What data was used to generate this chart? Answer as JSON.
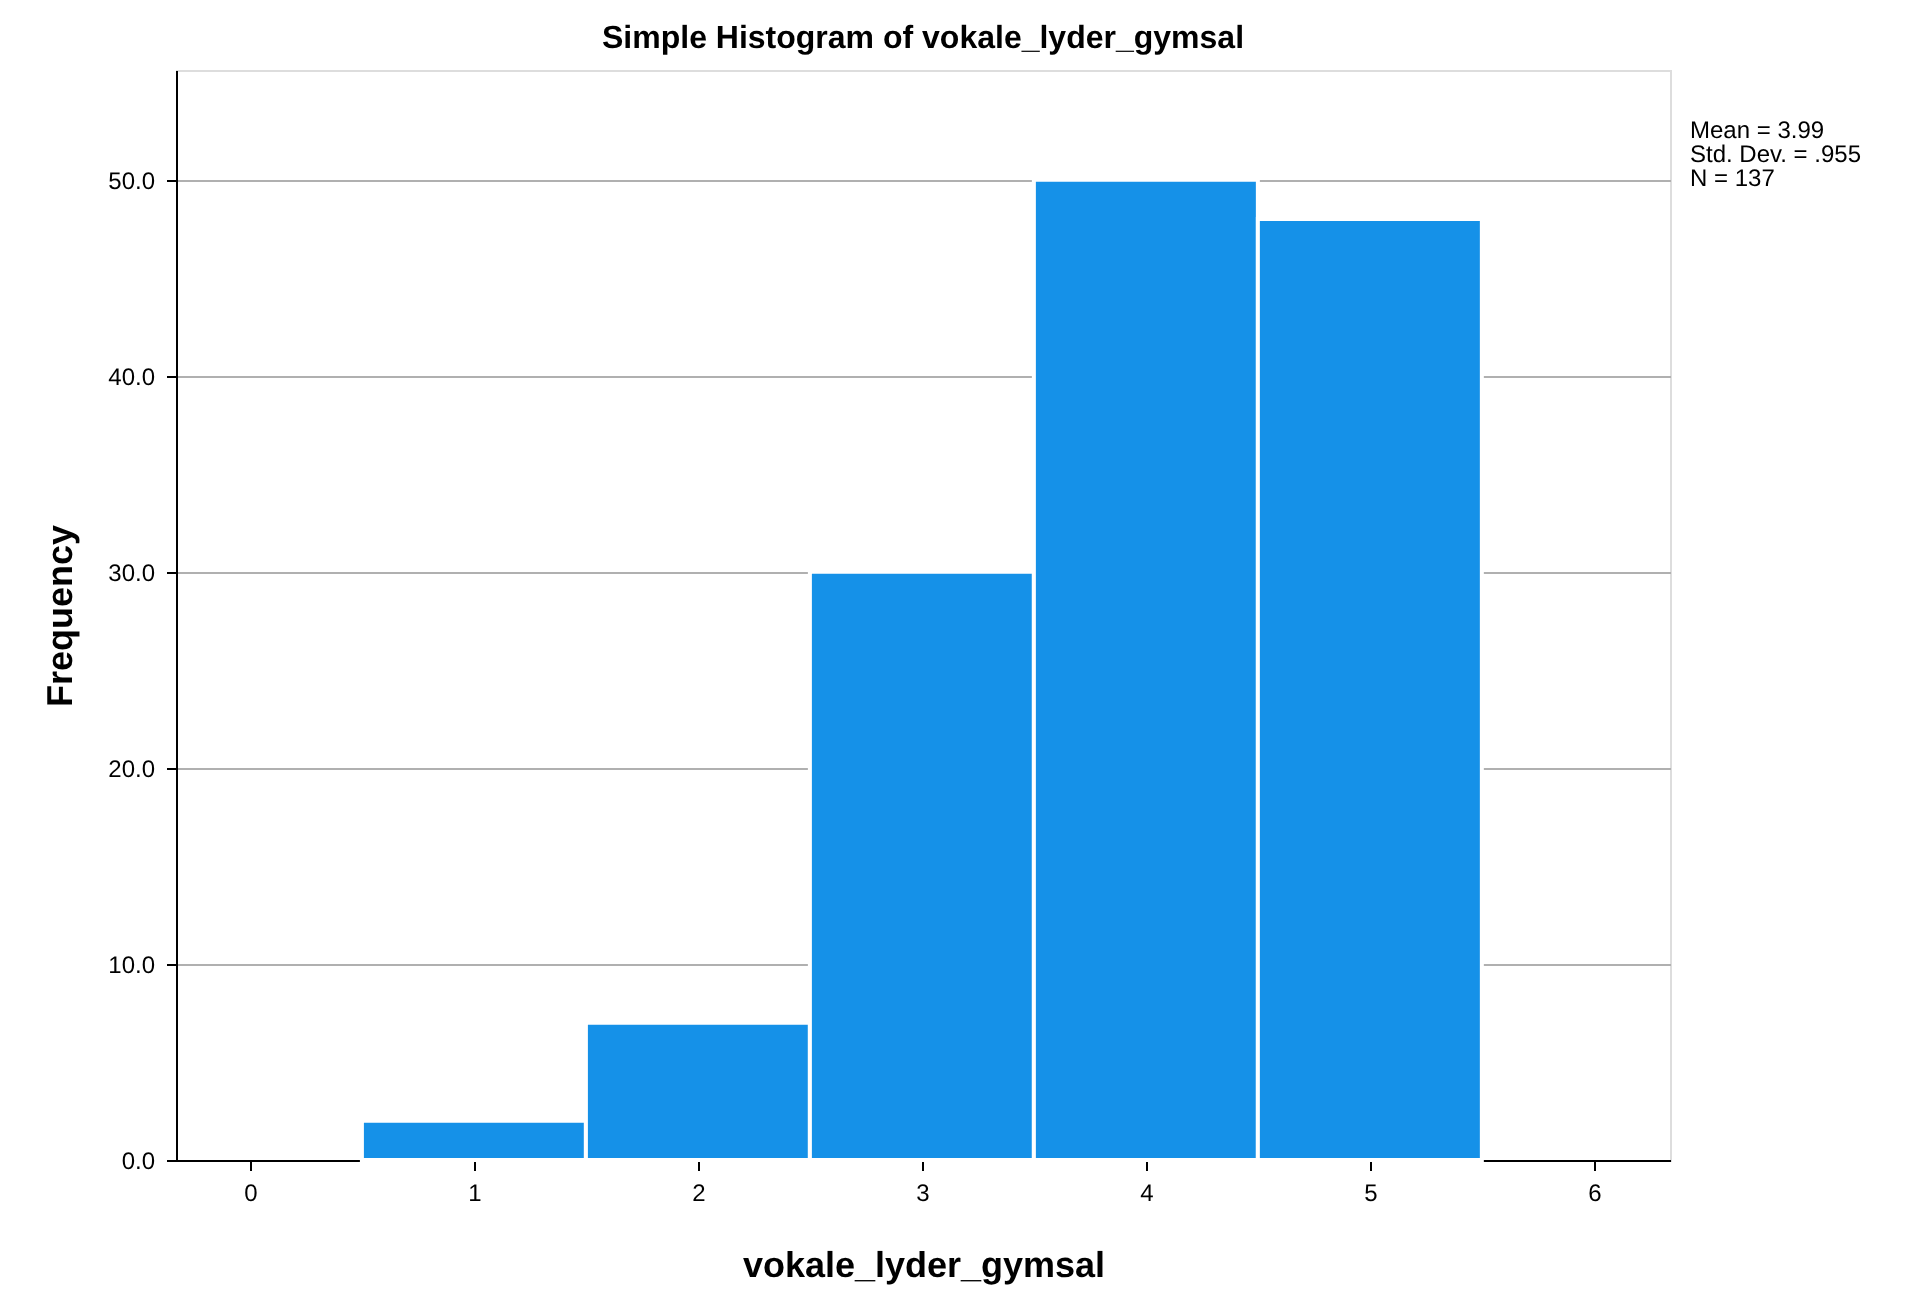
{
  "chart_data": {
    "type": "histogram",
    "title": "Simple Histogram of vokale_lyder_gymsal",
    "xlabel": "vokale_lyder_gymsal",
    "ylabel": "Frequency",
    "bins": [
      0.5,
      1.5,
      2.5,
      3.5,
      4.5,
      5.5
    ],
    "values": [
      2,
      7,
      30,
      50,
      48
    ],
    "color": "#1591e8",
    "xlim": [
      -0.33,
      6.34
    ],
    "xticks": [
      0,
      1,
      2,
      3,
      4,
      5,
      6
    ],
    "ylim": [
      0,
      55.6
    ],
    "yticks": [
      {
        "value": 0,
        "label": "0.0"
      },
      {
        "value": 10,
        "label": "10.0"
      },
      {
        "value": 20,
        "label": "20.0"
      },
      {
        "value": 30,
        "label": "30.0"
      },
      {
        "value": 40,
        "label": "40.0"
      },
      {
        "value": 50,
        "label": "50.0"
      }
    ],
    "grid": "y",
    "annotations": [
      "Mean = 3.99",
      "Std. Dev. = .955",
      "N = 137"
    ]
  }
}
